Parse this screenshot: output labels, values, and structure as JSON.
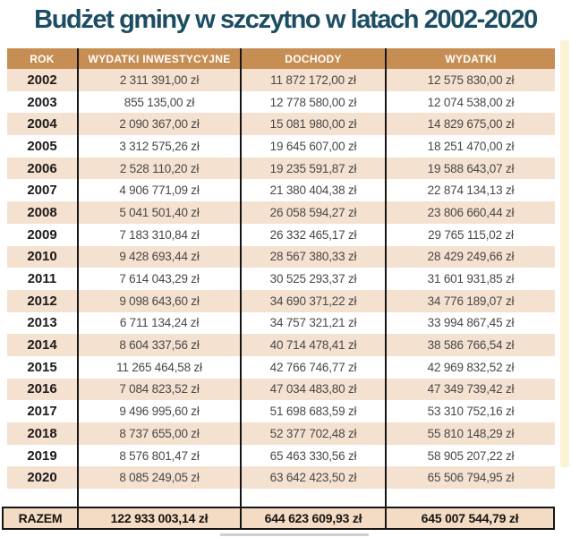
{
  "title": "Budżet gminy w szczytno w latach 2002-2020",
  "currency_suffix": "zł",
  "colors": {
    "title_teal": "#1c4d62",
    "header_tan": "#c78e53",
    "row_peach": "#f5e1d0",
    "footer_peach": "#f3dcc3",
    "border_black": "#161616",
    "edge_strip_cream": "#faf3d6"
  },
  "chart_data": {
    "type": "table",
    "title": "Budżet gminy w szczytno w latach 2002-2020",
    "columns": [
      "ROK",
      "WYDATKI INWESTYCYJNE",
      "DOCHODY",
      "WYDATKI"
    ],
    "rows": [
      [
        "2002",
        "2 311 391,00 zł",
        "11 872 172,00 zł",
        "12 575 830,00 zł"
      ],
      [
        "2003",
        "855 135,00 zł",
        "12 778 580,00 zł",
        "12 074 538,00 zł"
      ],
      [
        "2004",
        "2 090 367,00 zł",
        "15 081 980,00 zł",
        "14 829 675,00 zł"
      ],
      [
        "2005",
        "3 312 575,26 zł",
        "19 645 607,00 zł",
        "18 251 470,00 zł"
      ],
      [
        "2006",
        "2 528 110,20 zł",
        "19 235 591,87 zł",
        "19 588 643,07 zł"
      ],
      [
        "2007",
        "4 906 771,09 zł",
        "21 380 404,38 zł",
        "22 874 134,13 zł"
      ],
      [
        "2008",
        "5 041 501,40 zł",
        "26 058 594,27 zł",
        "23 806 660,44 zł"
      ],
      [
        "2009",
        "7 183 310,84 zł",
        "26 332 465,17 zł",
        "29 765 115,02 zł"
      ],
      [
        "2010",
        "9 428 693,44 zł",
        "28 567 380,33 zł",
        "28 429 249,66 zł"
      ],
      [
        "2011",
        "7 614 043,29 zł",
        "30 525 293,37 zł",
        "31 601 931,85 zł"
      ],
      [
        "2012",
        "9 098 643,60 zł",
        "34 690 371,22 zł",
        "34 776 189,07 zł"
      ],
      [
        "2013",
        "6 711 134,24 zł",
        "34 757 321,21 zł",
        "33 994 867,45 zł"
      ],
      [
        "2014",
        "8 604 337,56 zł",
        "40 714 478,41 zł",
        "38 586 766,54 zł"
      ],
      [
        "2015",
        "11 265 464,58 zł",
        "42 766 746,77 zł",
        "42 969 832,52 zł"
      ],
      [
        "2016",
        "7 084 823,52 zł",
        "47 034 483,80 zł",
        "47 349 739,42 zł"
      ],
      [
        "2017",
        "9 496 995,60 zł",
        "51 698 683,59 zł",
        "53 310 752,16 zł"
      ],
      [
        "2018",
        "8 737 655,00 zł",
        "52 377 702,48 zł",
        "55 810 148,29 zł"
      ],
      [
        "2019",
        "8 576 801,47 zł",
        "65 463 330,56 zł",
        "58 905 207,22 zł"
      ],
      [
        "2020",
        "8 085 249,05 zł",
        "63 642 423,50 zł",
        "65 506 794,95 zł"
      ]
    ],
    "totals_row": [
      "RAZEM",
      "122 933 003,14 zł",
      "644 623 609,93 zł",
      "645 007 544,79 zł"
    ]
  }
}
